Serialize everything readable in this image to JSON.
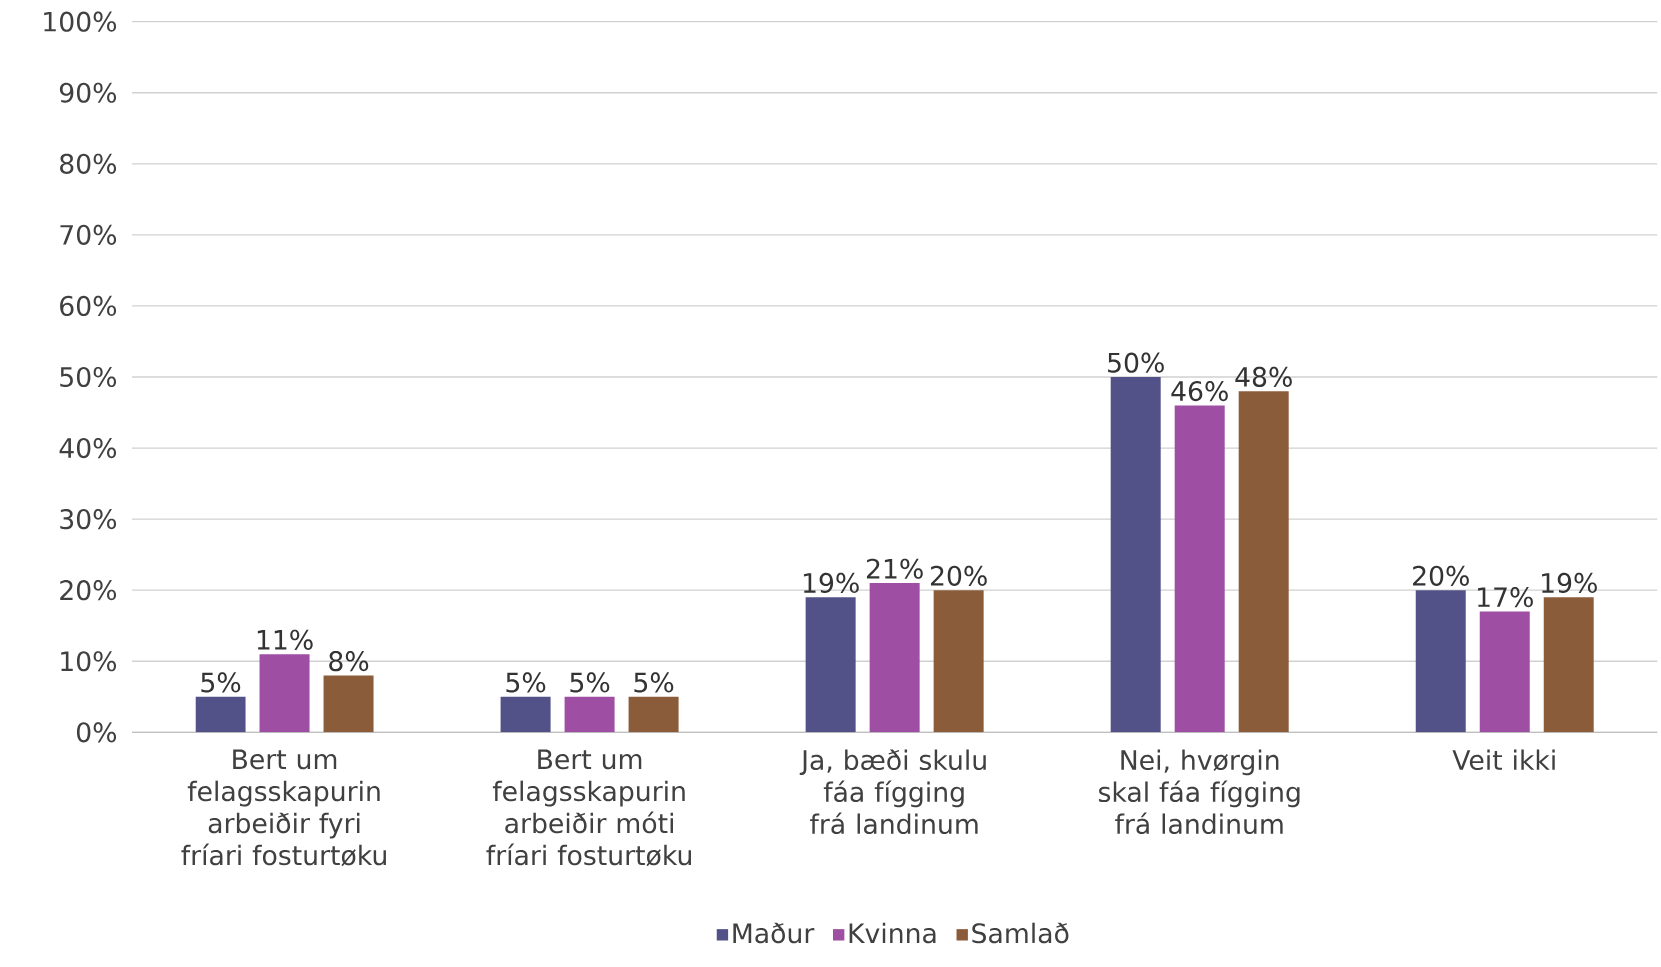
{
  "chart_data": {
    "type": "bar",
    "categories": [
      "Bert um felagsskapurin arbeiðir fyri fríari fosturtøku",
      "Bert um felagsskapurin arbeiðir móti fríari fosturtøku",
      "Ja, bæði skulu fáa fígging frá landinum",
      "Nei, hvørgin skal fáa fígging frá landinum",
      "Veit ikki"
    ],
    "series": [
      {
        "name": "Maður",
        "color": "#525288",
        "values": [
          5,
          5,
          19,
          50,
          20
        ],
        "value_labels": [
          "5%",
          "5%",
          "19%",
          "50%",
          "20%"
        ]
      },
      {
        "name": "Kvinna",
        "color": "#9e4ea3",
        "values": [
          11,
          5,
          21,
          46,
          17
        ],
        "value_labels": [
          "11%",
          "5%",
          "21%",
          "46%",
          "17%"
        ]
      },
      {
        "name": "Samlað",
        "color": "#8b5c3a",
        "values": [
          8,
          5,
          20,
          48,
          19
        ],
        "value_labels": [
          "8%",
          "5%",
          "20%",
          "48%",
          "19%"
        ]
      }
    ],
    "ylim": [
      0,
      100
    ],
    "yticks": [
      {
        "value": 0,
        "label": "0%"
      },
      {
        "value": 10,
        "label": "10%"
      },
      {
        "value": 20,
        "label": "20%"
      },
      {
        "value": 30,
        "label": "30%"
      },
      {
        "value": 40,
        "label": "40%"
      },
      {
        "value": 50,
        "label": "50%"
      },
      {
        "value": 60,
        "label": "60%"
      },
      {
        "value": 70,
        "label": "70%"
      },
      {
        "value": 80,
        "label": "80%"
      },
      {
        "value": 90,
        "label": "90%"
      },
      {
        "value": 100,
        "label": "100%"
      }
    ],
    "grid": "y",
    "legend": "bottom"
  }
}
